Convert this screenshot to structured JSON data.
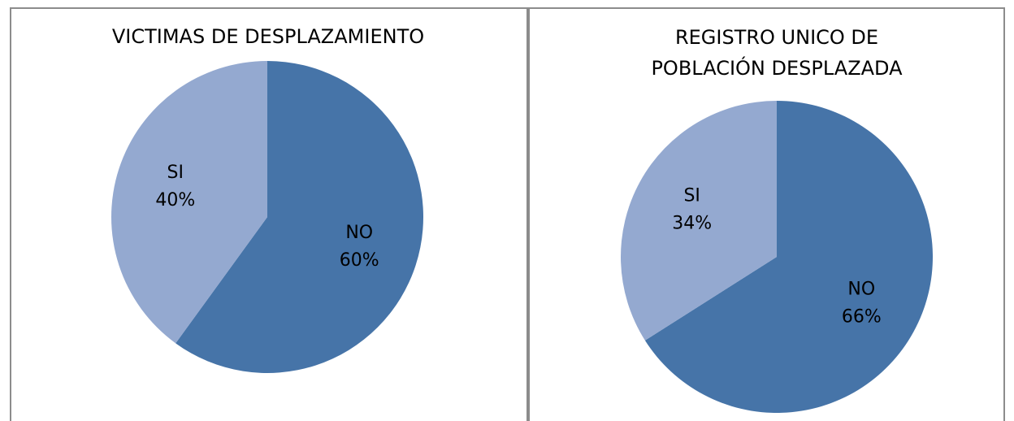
{
  "chart_data": [
    {
      "type": "pie",
      "title": [
        "VICTIMAS DE DESPLAZAMIENTO"
      ],
      "categories": [
        "NO",
        "SI"
      ],
      "values": [
        60,
        40
      ],
      "value_labels": [
        "60%",
        "40%"
      ],
      "colors": [
        "#4674a8",
        "#94a9d0"
      ]
    },
    {
      "type": "pie",
      "title": [
        "REGISTRO UNICO DE",
        "POBLACIÓN DESPLAZADA"
      ],
      "categories": [
        "NO",
        "SI"
      ],
      "values": [
        66,
        34
      ],
      "value_labels": [
        "66%",
        "34%"
      ],
      "colors": [
        "#4674a8",
        "#94a9d0"
      ]
    }
  ]
}
